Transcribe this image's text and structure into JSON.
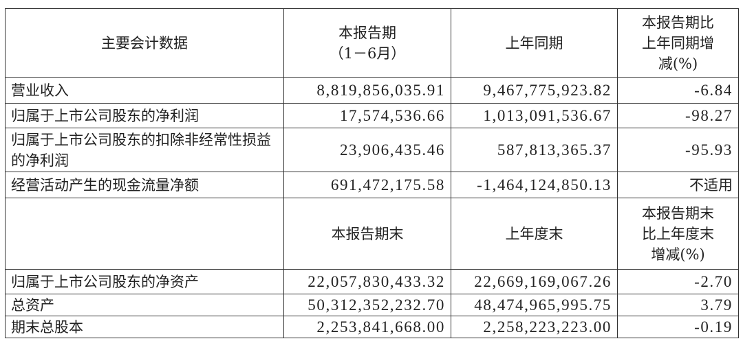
{
  "header1": [
    "主要会计数据",
    "本报告期\n（1－6月）",
    "上年同期",
    "本报告期比\n上年同期增\n减(%)"
  ],
  "rows1": [
    {
      "label": "营业收入",
      "current": "8,819,856,035.91",
      "prior": "9,467,775,923.82",
      "change": "-6.84"
    },
    {
      "label": "归属于上市公司股东的净利润",
      "current": "17,574,536.66",
      "prior": "1,013,091,536.67",
      "change": "-98.27"
    },
    {
      "label": "归属于上市公司股东的扣除非经常性损益的净利润",
      "current": "23,906,435.46",
      "prior": "587,813,365.37",
      "change": "-95.93"
    },
    {
      "label": "经营活动产生的现金流量净额",
      "current": "691,472,175.58",
      "prior": "-1,464,124,850.13",
      "change": "不适用"
    }
  ],
  "header2": [
    "",
    "本报告期末",
    "上年度末",
    "本报告期末\n比上年度末\n增减(%)"
  ],
  "rows2": [
    {
      "label": "归属于上市公司股东的净资产",
      "current": "22,057,830,433.32",
      "prior": "22,669,169,067.26",
      "change": "-2.70"
    },
    {
      "label": "总资产",
      "current": "50,312,352,232.70",
      "prior": "48,474,965,995.75",
      "change": "3.79"
    },
    {
      "label": "期末总股本",
      "current": "2,253,841,668.00",
      "prior": "2,258,223,223.00",
      "change": "-0.19"
    }
  ]
}
